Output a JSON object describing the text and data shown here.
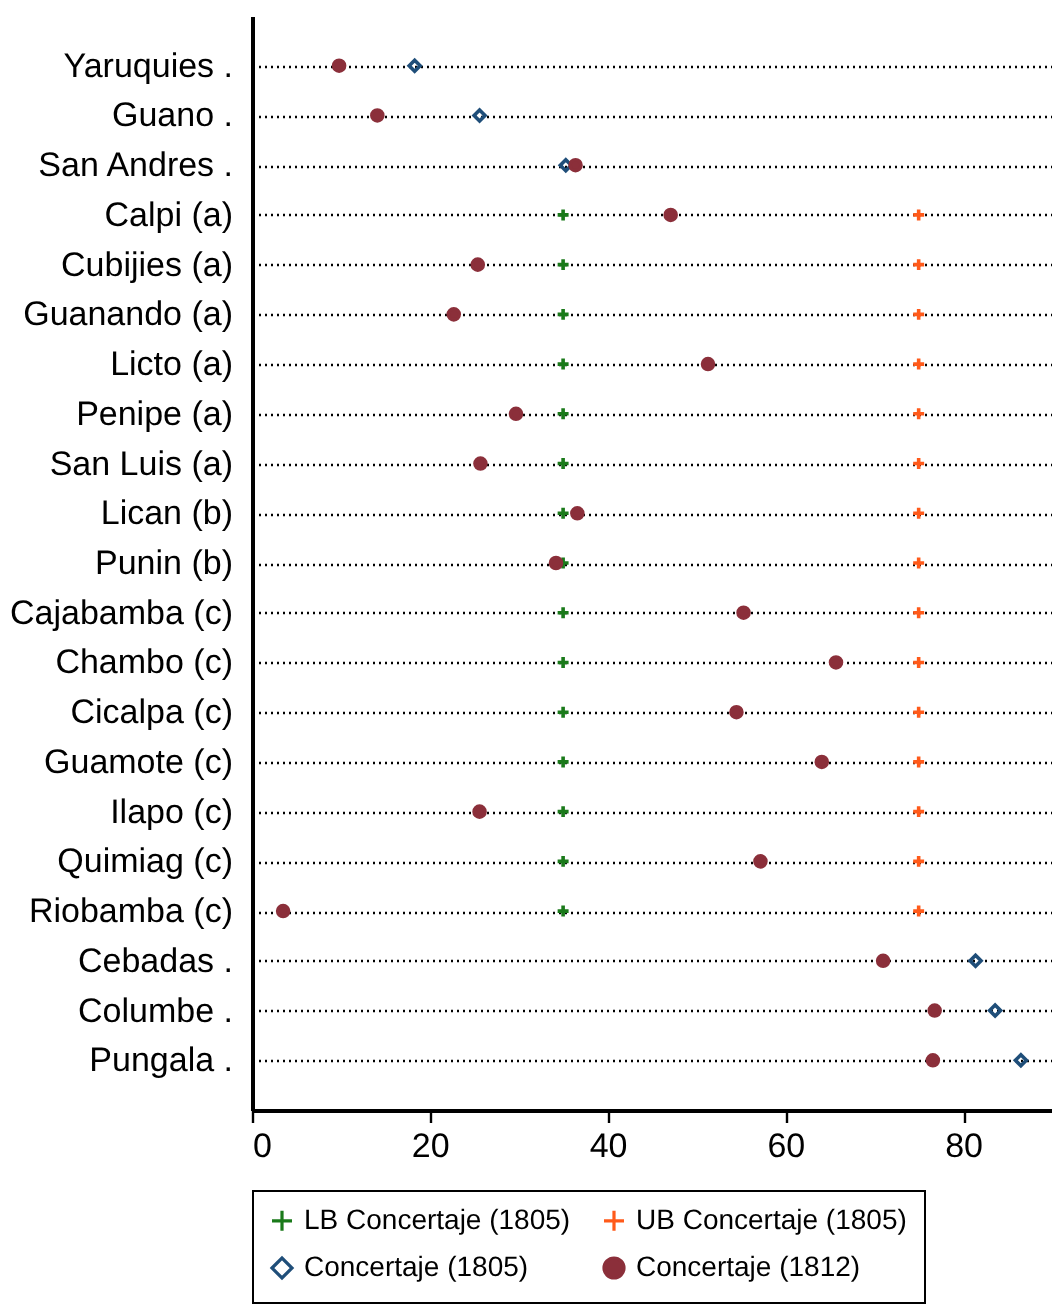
{
  "chart_data": {
    "type": "scatter",
    "categories": [
      "Yaruquies .",
      "Guano .",
      "San Andres .",
      "Calpi (a)",
      "Cubijies (a)",
      "Guanando (a)",
      "Licto (a)",
      "Penipe (a)",
      "San Luis (a)",
      "Lican (b)",
      "Punin (b)",
      "Cajabamba (c)",
      "Chambo (c)",
      "Cicalpa (c)",
      "Guamote (c)",
      "Ilapo (c)",
      "Quimiag (c)",
      "Riobamba (c)",
      "Cebadas .",
      "Columbe .",
      "Pungala ."
    ],
    "series": [
      {
        "name": "LB Concertaje (1805)",
        "color": "#1a7a1a",
        "marker": "cross",
        "values": [
          null,
          null,
          null,
          35,
          35,
          35,
          35,
          35,
          35,
          35,
          35,
          35,
          35,
          35,
          35,
          35,
          35,
          35,
          null,
          null,
          null
        ]
      },
      {
        "name": "UB Concertaje (1805)",
        "color": "#ff5a1a",
        "marker": "cross",
        "values": [
          null,
          null,
          null,
          75,
          75,
          75,
          75,
          75,
          75,
          75,
          75,
          75,
          75,
          75,
          75,
          75,
          75,
          75,
          null,
          null,
          null
        ]
      },
      {
        "name": "Concertaje (1805)",
        "color": "#1f4e79",
        "marker": "diamond",
        "values": [
          18.3,
          25.6,
          35.3,
          null,
          null,
          null,
          null,
          null,
          null,
          null,
          null,
          null,
          null,
          null,
          null,
          null,
          null,
          null,
          81.4,
          83.6,
          86.5
        ]
      },
      {
        "name": "Concertaje (1812)",
        "color": "#8b2f3a",
        "marker": "circle",
        "values": [
          9.8,
          14.1,
          36.4,
          47.1,
          25.4,
          22.7,
          51.3,
          29.7,
          25.7,
          36.6,
          34.2,
          55.3,
          65.7,
          54.5,
          64.1,
          25.6,
          57.2,
          3.5,
          71.0,
          76.8,
          76.6
        ]
      }
    ],
    "xlim": [
      0,
      90
    ],
    "xticks": [
      0,
      20,
      40,
      60,
      80
    ],
    "orientation": "horizontal",
    "grid": "y",
    "legend": "bottom"
  }
}
